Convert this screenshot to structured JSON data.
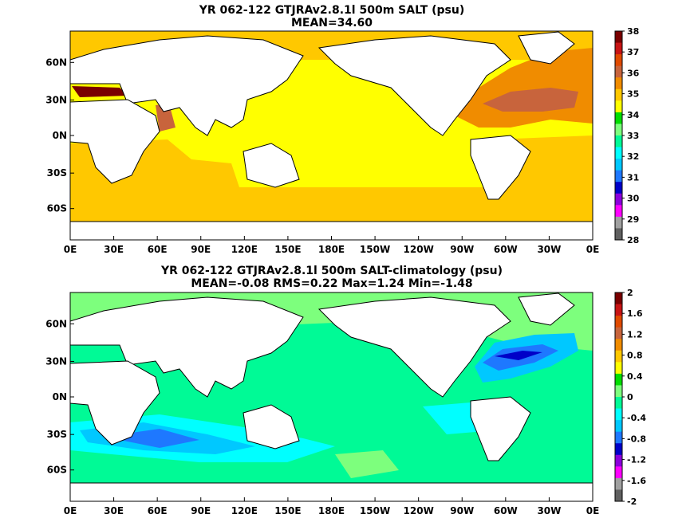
{
  "panels": [
    {
      "title_line1": "YR 062-122 GTJRAv2.8.1l 500m SALT (psu)",
      "title_line2": "MEAN=34.60",
      "x_ticks": [
        "0E",
        "30E",
        "60E",
        "90E",
        "120E",
        "150E",
        "180E",
        "150W",
        "120W",
        "90W",
        "60W",
        "30W",
        "0E"
      ],
      "y_ticks": [
        "60N",
        "30N",
        "0N",
        "30S",
        "60S"
      ],
      "colorbar": {
        "labels": [
          "38",
          "37",
          "36",
          "35",
          "34",
          "33",
          "32",
          "31",
          "30",
          "29",
          "28"
        ],
        "colors": [
          "#7a0000",
          "#c81414",
          "#e04a00",
          "#c8643c",
          "#f08c00",
          "#ffc800",
          "#ffff00",
          "#00dd00",
          "#7dff7d",
          "#00fa96",
          "#00ffff",
          "#00c8ff",
          "#1e78ff",
          "#0000c8",
          "#8c00dc",
          "#ff00ff",
          "#a0a0a0",
          "#606060"
        ]
      },
      "zones": [
        {
          "name": "southern-ocean",
          "color": "#ffc800"
        },
        {
          "name": "mid-ocean",
          "color": "#ffff00"
        },
        {
          "name": "north-atlantic",
          "color": "#f08c00"
        },
        {
          "name": "mediterranean",
          "color": "#7a0000"
        }
      ]
    },
    {
      "title_line1": "YR 062-122 GTJRAv2.8.1l 500m SALT-climatology (psu)",
      "title_line2": "MEAN=-0.08   RMS=0.22   Max=1.24   Min=-1.48",
      "x_ticks": [
        "0E",
        "30E",
        "60E",
        "90E",
        "120E",
        "150E",
        "180E",
        "150W",
        "120W",
        "90W",
        "60W",
        "30W",
        "0E"
      ],
      "y_ticks": [
        "60N",
        "30N",
        "0N",
        "30S",
        "60S"
      ],
      "colorbar": {
        "labels": [
          "2",
          "1.6",
          "1.2",
          "0.8",
          "0.4",
          "0",
          "-0.4",
          "-0.8",
          "-1.2",
          "-1.6",
          "-2"
        ],
        "colors": [
          "#7a0000",
          "#c81414",
          "#e04a00",
          "#c8643c",
          "#f08c00",
          "#ffc800",
          "#ffff00",
          "#00dd00",
          "#7dff7d",
          "#00fa96",
          "#00ffff",
          "#00c8ff",
          "#1e78ff",
          "#0000c8",
          "#8c00dc",
          "#ff00ff",
          "#a0a0a0",
          "#606060"
        ]
      },
      "zones": [
        {
          "name": "high-latitudes",
          "color": "#7dff7d"
        },
        {
          "name": "mid-ocean",
          "color": "#00fa96"
        },
        {
          "name": "southern-anomaly",
          "color": "#00c8ff"
        },
        {
          "name": "north-atlantic-anomaly",
          "color": "#1e78ff"
        }
      ]
    }
  ]
}
